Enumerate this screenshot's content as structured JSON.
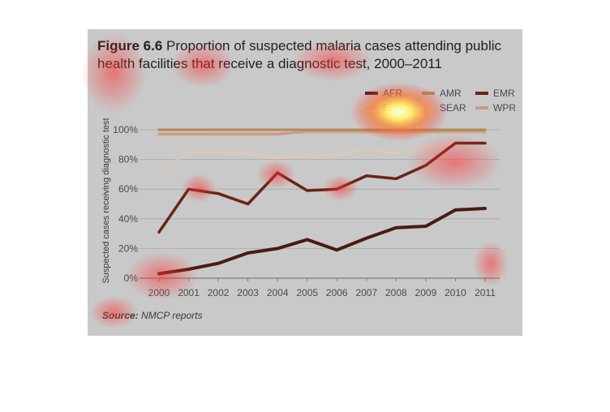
{
  "figure": {
    "label": "Figure 6.6",
    "title": "Proportion of suspected malaria cases attending public health facilities that receive a diagnostic test, 2000–2011",
    "source_label": "Source:",
    "source_text": "NMCP reports"
  },
  "chart_data": {
    "type": "line",
    "title": "Proportion of suspected malaria cases attending public health facilities that receive a diagnostic test, 2000–2011",
    "xlabel": "",
    "ylabel": "Suspected cases receiving diagnostic test",
    "ylim": [
      0,
      100
    ],
    "yticks": [
      "0%",
      "20%",
      "40%",
      "60%",
      "80%",
      "100%"
    ],
    "grid": true,
    "legend_position": "top-right",
    "categories": [
      "2000",
      "2001",
      "2002",
      "2003",
      "2004",
      "2005",
      "2006",
      "2007",
      "2008",
      "2009",
      "2010",
      "2011"
    ],
    "series": [
      {
        "name": "AFR",
        "color": "#4a1b10",
        "values": [
          3,
          6,
          10,
          17,
          20,
          26,
          19,
          27,
          34,
          35,
          46,
          47
        ]
      },
      {
        "name": "AMR",
        "color": "#b08a5c",
        "values": [
          100,
          100,
          100,
          100,
          100,
          100,
          100,
          100,
          100,
          100,
          100,
          100
        ]
      },
      {
        "name": "EMR",
        "color": "#6a2416",
        "values": [
          31,
          60,
          57,
          50,
          71,
          59,
          60,
          69,
          67,
          76,
          91,
          91
        ]
      },
      {
        "name": "EUR",
        "color": "#d8b79a",
        "values": [
          98,
          98,
          98,
          98,
          98,
          98,
          98,
          98,
          98,
          98,
          98,
          98
        ]
      },
      {
        "name": "SEAR",
        "color": "#dcc8b4",
        "values": [
          71,
          85,
          85,
          84,
          81,
          82,
          83,
          87,
          84,
          88,
          91,
          91
        ]
      },
      {
        "name": "WPR",
        "color": "#c89a88",
        "values": [
          97,
          97,
          97,
          97,
          97,
          99,
          99,
          99,
          99,
          99,
          99,
          99
        ]
      }
    ],
    "highlight_colors": {
      "orange": "#c17a3e"
    }
  }
}
